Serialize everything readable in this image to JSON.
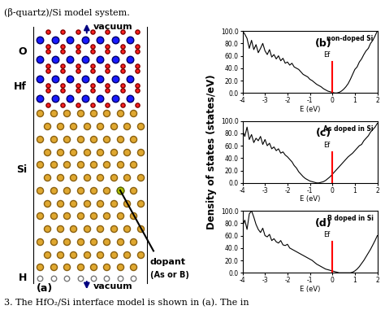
{
  "header": {
    "caption_top": "(β-quartz)/Si model system.",
    "caption_bottom": "3. The HfO₂/Si interface model is shown in (a). The in"
  },
  "diagram": {
    "panel_label": "(a)",
    "vacuum_top": "vacuum",
    "vacuum_bottom": "vacuum",
    "layers": [
      "O",
      "Hf",
      "Si",
      "H"
    ],
    "dopant": "dopant",
    "dopant_kind": "(As or B)"
  },
  "figure": {
    "ylabel": "Density of states (states/eV)"
  },
  "chart_data": [
    {
      "type": "line",
      "panel_label": "(b)",
      "annotation": "non-doped Si",
      "xlabel": "E (eV)",
      "color": "#000000",
      "fermi": {
        "value": 0,
        "label": "Ef",
        "color": "#ff0000"
      },
      "x": [
        -4.0,
        -3.9,
        -3.8,
        -3.7,
        -3.6,
        -3.5,
        -3.4,
        -3.3,
        -3.2,
        -3.1,
        -3.0,
        -2.9,
        -2.8,
        -2.7,
        -2.6,
        -2.5,
        -2.4,
        -2.3,
        -2.2,
        -2.1,
        -2.0,
        -1.9,
        -1.8,
        -1.7,
        -1.6,
        -1.5,
        -1.4,
        -1.3,
        -1.2,
        -1.1,
        -1.0,
        -0.9,
        -0.8,
        -0.7,
        -0.6,
        -0.5,
        -0.4,
        -0.3,
        -0.2,
        -0.1,
        0.0,
        0.1,
        0.2,
        0.3,
        0.4,
        0.5,
        0.6,
        0.7,
        0.8,
        0.9,
        1.0,
        1.1,
        1.2,
        1.3,
        1.4,
        1.5,
        1.6,
        1.7,
        1.8,
        1.9,
        2.0
      ],
      "values": [
        100,
        95,
        88,
        72,
        85,
        70,
        78,
        65,
        72,
        80,
        68,
        62,
        70,
        58,
        62,
        55,
        60,
        52,
        56,
        48,
        50,
        45,
        48,
        42,
        40,
        38,
        34,
        30,
        28,
        26,
        22,
        20,
        17,
        14,
        12,
        10,
        7,
        5,
        3,
        2,
        1,
        0,
        0,
        1,
        3,
        6,
        10,
        15,
        22,
        30,
        38,
        42,
        50,
        55,
        62,
        68,
        72,
        80,
        85,
        92,
        100
      ],
      "xlim": [
        -4,
        2
      ],
      "xticks": [
        -4,
        -3,
        -2,
        -1,
        0,
        1,
        2
      ],
      "ylim": [
        0,
        100
      ],
      "yticks": [
        {
          "value": 0,
          "label": "0.0"
        },
        {
          "value": 20,
          "label": "20.0"
        },
        {
          "value": 40,
          "label": "40.0"
        },
        {
          "value": 60,
          "label": "60.0"
        },
        {
          "value": 80,
          "label": "80.0"
        },
        {
          "value": 100,
          "label": "100.0"
        }
      ]
    },
    {
      "type": "line",
      "panel_label": "(c)",
      "annotation": "As doped in Si",
      "xlabel": "E (eV)",
      "color": "#000000",
      "fermi": {
        "value": 0,
        "label": "Ef",
        "color": "#ff0000"
      },
      "x": [
        -4.0,
        -3.9,
        -3.8,
        -3.7,
        -3.6,
        -3.5,
        -3.4,
        -3.3,
        -3.2,
        -3.1,
        -3.0,
        -2.9,
        -2.8,
        -2.7,
        -2.6,
        -2.5,
        -2.4,
        -2.3,
        -2.2,
        -2.1,
        -2.0,
        -1.9,
        -1.8,
        -1.7,
        -1.6,
        -1.5,
        -1.4,
        -1.3,
        -1.2,
        -1.1,
        -1.0,
        -0.9,
        -0.8,
        -0.7,
        -0.6,
        -0.5,
        -0.4,
        -0.3,
        -0.2,
        -0.1,
        0.0,
        0.1,
        0.2,
        0.3,
        0.4,
        0.5,
        0.6,
        0.7,
        0.8,
        0.9,
        1.0,
        1.1,
        1.2,
        1.3,
        1.4,
        1.5,
        1.6,
        1.7,
        1.8,
        1.9,
        2.0
      ],
      "values": [
        85,
        75,
        90,
        70,
        78,
        65,
        72,
        68,
        75,
        62,
        70,
        60,
        64,
        55,
        58,
        52,
        55,
        48,
        50,
        45,
        42,
        38,
        34,
        28,
        24,
        18,
        14,
        10,
        7,
        5,
        3,
        2,
        1,
        0,
        0,
        1,
        2,
        4,
        7,
        10,
        14,
        18,
        22,
        26,
        30,
        34,
        38,
        42,
        45,
        48,
        52,
        56,
        60,
        62,
        68,
        72,
        76,
        82,
        86,
        90,
        96
      ],
      "xlim": [
        -4,
        2
      ],
      "xticks": [
        -4,
        -3,
        -2,
        -1,
        0,
        1,
        2
      ],
      "ylim": [
        0,
        100
      ],
      "yticks": [
        {
          "value": 0,
          "label": "0.0"
        },
        {
          "value": 20,
          "label": "20.0"
        },
        {
          "value": 40,
          "label": "40.0"
        },
        {
          "value": 60,
          "label": "60.0"
        },
        {
          "value": 80,
          "label": "80.0"
        },
        {
          "value": 100,
          "label": "100.0"
        }
      ]
    },
    {
      "type": "line",
      "panel_label": "(d)",
      "annotation": "B doped in Si",
      "xlabel": "E (eV)",
      "color": "#000000",
      "fermi": {
        "value": 0,
        "label": "Ef",
        "color": "#ff0000"
      },
      "x": [
        -4.0,
        -3.9,
        -3.8,
        -3.7,
        -3.6,
        -3.5,
        -3.4,
        -3.3,
        -3.2,
        -3.1,
        -3.0,
        -2.9,
        -2.8,
        -2.7,
        -2.6,
        -2.5,
        -2.4,
        -2.3,
        -2.2,
        -2.1,
        -2.0,
        -1.9,
        -1.8,
        -1.7,
        -1.6,
        -1.5,
        -1.4,
        -1.3,
        -1.2,
        -1.1,
        -1.0,
        -0.9,
        -0.8,
        -0.7,
        -0.6,
        -0.5,
        -0.4,
        -0.3,
        -0.2,
        -0.1,
        0.0,
        0.1,
        0.2,
        0.3,
        0.4,
        0.5,
        0.6,
        0.7,
        0.8,
        0.9,
        1.0,
        1.1,
        1.2,
        1.3,
        1.4,
        1.5,
        1.6,
        1.7,
        1.8,
        1.9,
        2.0
      ],
      "values": [
        75,
        85,
        70,
        95,
        100,
        90,
        78,
        70,
        65,
        72,
        60,
        58,
        62,
        52,
        55,
        50,
        48,
        52,
        45,
        44,
        46,
        40,
        38,
        36,
        34,
        32,
        30,
        28,
        26,
        24,
        22,
        20,
        17,
        14,
        12,
        10,
        8,
        6,
        5,
        4,
        3,
        2,
        1,
        0,
        0,
        0,
        0,
        0,
        0,
        1,
        3,
        6,
        10,
        15,
        20,
        26,
        32,
        38,
        45,
        52,
        60
      ],
      "xlim": [
        -4,
        2
      ],
      "xticks": [
        -4,
        -3,
        -2,
        -1,
        0,
        1,
        2
      ],
      "ylim": [
        0,
        100
      ],
      "yticks": [
        {
          "value": 0,
          "label": "0.0"
        },
        {
          "value": 20,
          "label": "20.0"
        },
        {
          "value": 40,
          "label": "40.0"
        },
        {
          "value": 60,
          "label": "60.0"
        },
        {
          "value": 80,
          "label": "80.0"
        },
        {
          "value": 100,
          "label": "100.0"
        }
      ]
    }
  ]
}
